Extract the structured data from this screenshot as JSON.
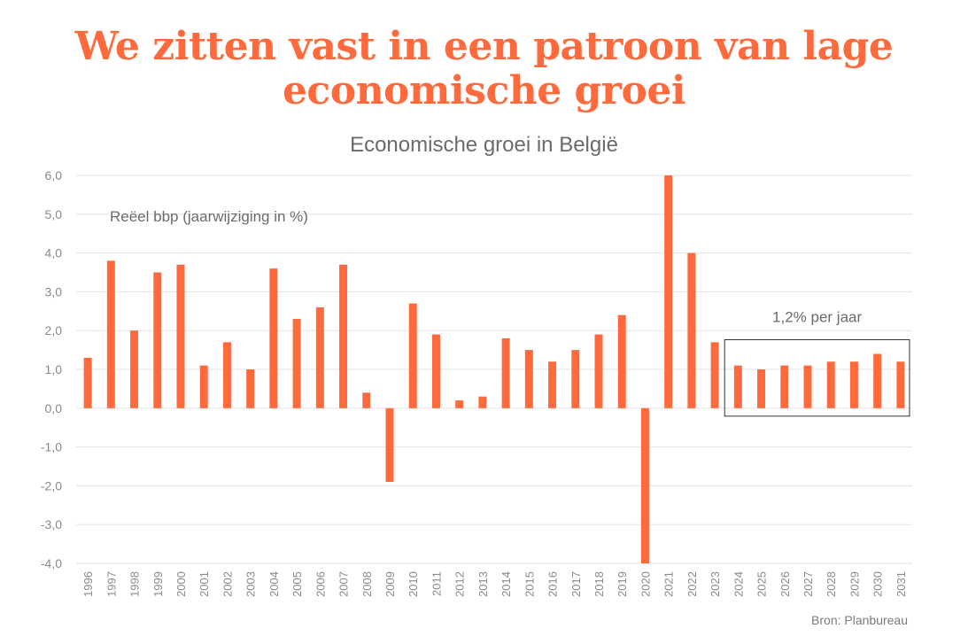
{
  "headline": {
    "line1": "We zitten vast in een patroon van lage",
    "line2": "economische groei"
  },
  "source": "Bron: Planbureau",
  "colors": {
    "accent": "#ff6a3d",
    "grid": "#e3e3e3",
    "text": "#6b6b6b"
  },
  "chart_data": {
    "type": "bar",
    "title": "Economische groei in België",
    "ylabel": "Reëel bbp (jaarwijziging in %)",
    "ylim": [
      -4.0,
      6.0
    ],
    "yticks": [
      "6,0",
      "5,0",
      "4,0",
      "3,0",
      "2,0",
      "1,0",
      "0,0",
      "-1,0",
      "-2,0",
      "-3,0",
      "-4,0"
    ],
    "ytick_values": [
      6,
      5,
      4,
      3,
      2,
      1,
      0,
      -1,
      -2,
      -3,
      -4
    ],
    "grid": true,
    "categories": [
      "1996",
      "1997",
      "1998",
      "1999",
      "2000",
      "2001",
      "2002",
      "2003",
      "2004",
      "2005",
      "2006",
      "2007",
      "2008",
      "2009",
      "2010",
      "2011",
      "2012",
      "2013",
      "2014",
      "2015",
      "2016",
      "2017",
      "2018",
      "2019",
      "2020",
      "2021",
      "2022",
      "2023",
      "2024",
      "2025",
      "2026",
      "2027",
      "2028",
      "2029",
      "2030",
      "2031"
    ],
    "values": [
      1.3,
      3.8,
      2.0,
      3.5,
      3.7,
      1.1,
      1.7,
      1.0,
      3.6,
      2.3,
      2.6,
      3.7,
      0.4,
      -1.9,
      2.7,
      1.9,
      0.2,
      0.3,
      1.8,
      1.5,
      1.2,
      1.5,
      1.9,
      2.4,
      -4.0,
      6.0,
      4.0,
      1.7,
      1.1,
      1.0,
      1.1,
      1.1,
      1.2,
      1.2,
      1.4,
      1.2
    ],
    "annotation": {
      "text": "1,2% per jaar",
      "from": "2024",
      "to": "2031"
    }
  }
}
